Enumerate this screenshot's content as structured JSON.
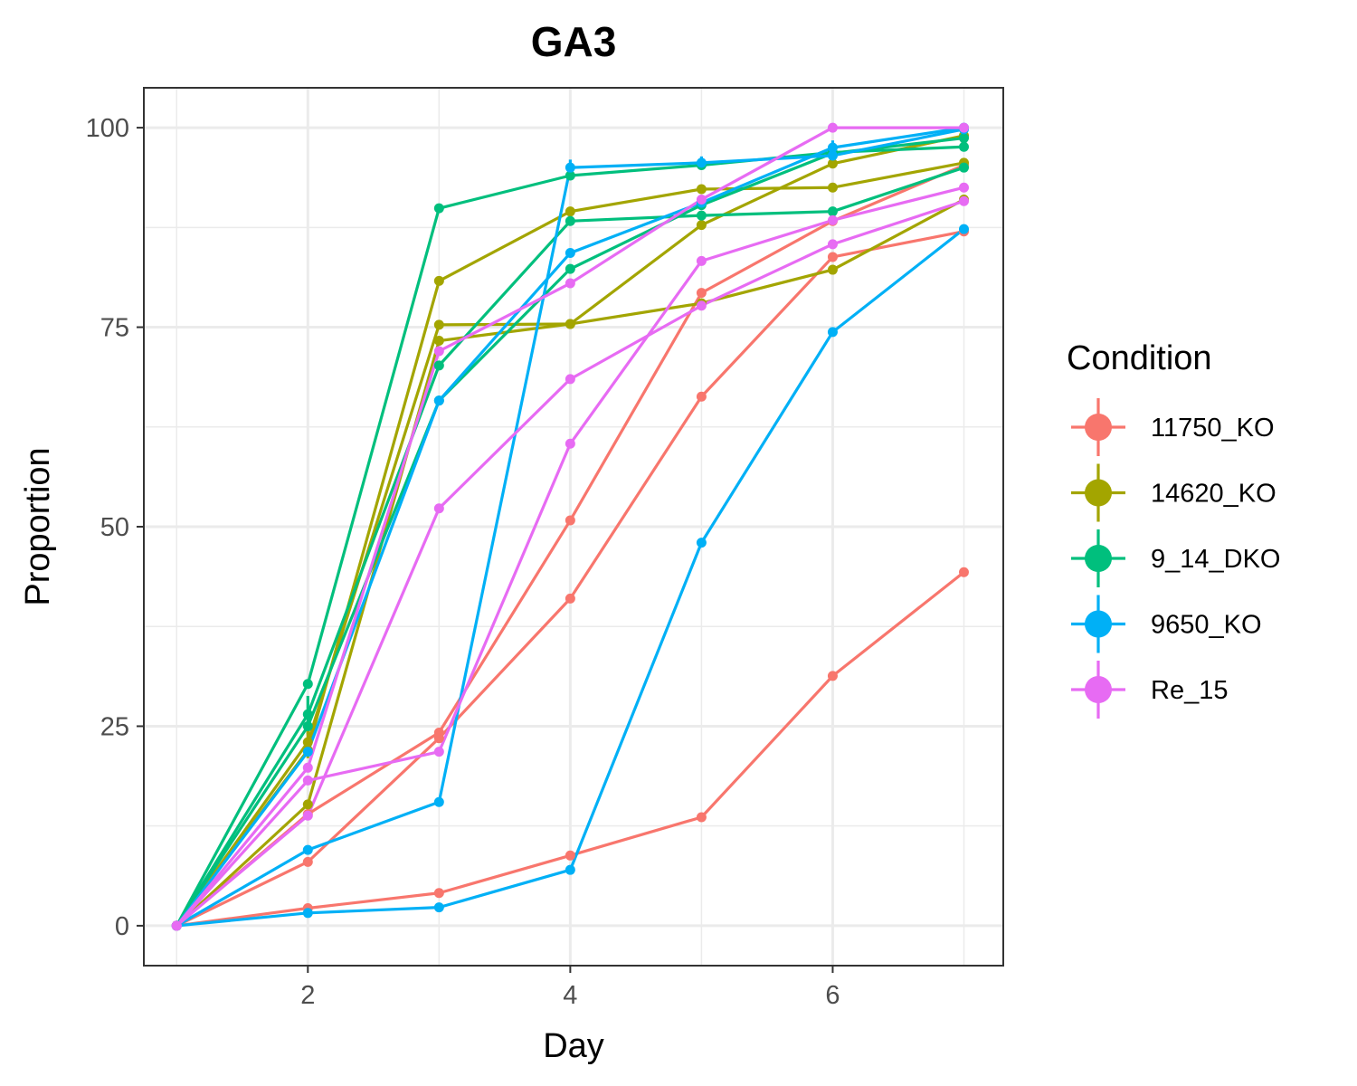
{
  "chart_data": {
    "type": "line",
    "title": "GA3",
    "xlabel": "Day",
    "ylabel": "Proportion",
    "xlim": [
      0.75,
      7.3
    ],
    "ylim": [
      -5,
      105
    ],
    "x_ticks": [
      2,
      4,
      6
    ],
    "y_ticks": [
      0,
      25,
      50,
      75,
      100
    ],
    "grid": true,
    "legend": {
      "title": "Condition",
      "position": "right",
      "entries": [
        {
          "name": "11750_KO",
          "color": "#F8766D"
        },
        {
          "name": "14620_KO",
          "color": "#A3A500"
        },
        {
          "name": "9_14_DKO",
          "color": "#00BF7D"
        },
        {
          "name": "9650_KO",
          "color": "#00B0F6"
        },
        {
          "name": "Re_15",
          "color": "#E76BF3"
        }
      ]
    },
    "x": [
      1,
      2,
      3,
      4,
      5,
      6,
      7
    ],
    "series": [
      {
        "condition": "11750_KO",
        "values": [
          0,
          2.2,
          4.1,
          8.8,
          13.6,
          31.3,
          44.3
        ]
      },
      {
        "condition": "11750_KO",
        "values": [
          0,
          8.0,
          23.5,
          41.0,
          66.3,
          83.8,
          87.0
        ]
      },
      {
        "condition": "11750_KO",
        "values": [
          0,
          14.0,
          24.2,
          50.8,
          79.3,
          88.3,
          95.3
        ]
      },
      {
        "condition": "14620_KO",
        "values": [
          0,
          15.2,
          73.3,
          75.4,
          87.8,
          95.5,
          99.0
        ]
      },
      {
        "condition": "14620_KO",
        "values": [
          0,
          23.0,
          75.3,
          75.4,
          78.0,
          82.2,
          91.0
        ]
      },
      {
        "condition": "14620_KO",
        "values": [
          0,
          22.0,
          80.8,
          89.5,
          92.3,
          92.5,
          95.6
        ]
      },
      {
        "condition": "9_14_DKO",
        "values": [
          0,
          30.3,
          89.9,
          94.0,
          95.3,
          96.9,
          97.6
        ]
      },
      {
        "condition": "9_14_DKO",
        "values": [
          0,
          26.5,
          70.2,
          88.3,
          89.0,
          89.5,
          95.0
        ]
      },
      {
        "condition": "9_14_DKO",
        "values": [
          0,
          25.0,
          65.8,
          82.3,
          90.3,
          96.8,
          98.7
        ]
      },
      {
        "condition": "9650_KO",
        "values": [
          0,
          9.5,
          15.5,
          95.0,
          95.6,
          96.5,
          99.8
        ]
      },
      {
        "condition": "9650_KO",
        "values": [
          0,
          1.6,
          2.3,
          7.0,
          48.0,
          74.4,
          87.3
        ]
      },
      {
        "condition": "9650_KO",
        "values": [
          0,
          21.8,
          65.8,
          84.3,
          90.6,
          97.5,
          100
        ]
      },
      {
        "condition": "Re_15",
        "values": [
          0,
          13.8,
          52.3,
          68.5,
          77.7,
          85.4,
          90.8
        ]
      },
      {
        "condition": "Re_15",
        "values": [
          0,
          18.2,
          21.8,
          60.4,
          83.3,
          88.4,
          92.5
        ]
      },
      {
        "condition": "Re_15",
        "values": [
          0,
          19.8,
          72.0,
          80.5,
          91.0,
          100,
          100
        ]
      }
    ],
    "error_bars": [
      {
        "condition": "9_14_DKO",
        "x": 2,
        "low": 24.0,
        "high": 28.8
      },
      {
        "condition": "14620_KO",
        "x": 2,
        "low": 21.0,
        "high": 24.5
      },
      {
        "condition": "9650_KO",
        "x": 4,
        "low": 94.0,
        "high": 96.0
      },
      {
        "condition": "9650_KO",
        "x": 5,
        "low": 94.8,
        "high": 96.4
      },
      {
        "condition": "9650_KO",
        "x": 6,
        "low": 96.6,
        "high": 98.4
      }
    ]
  }
}
